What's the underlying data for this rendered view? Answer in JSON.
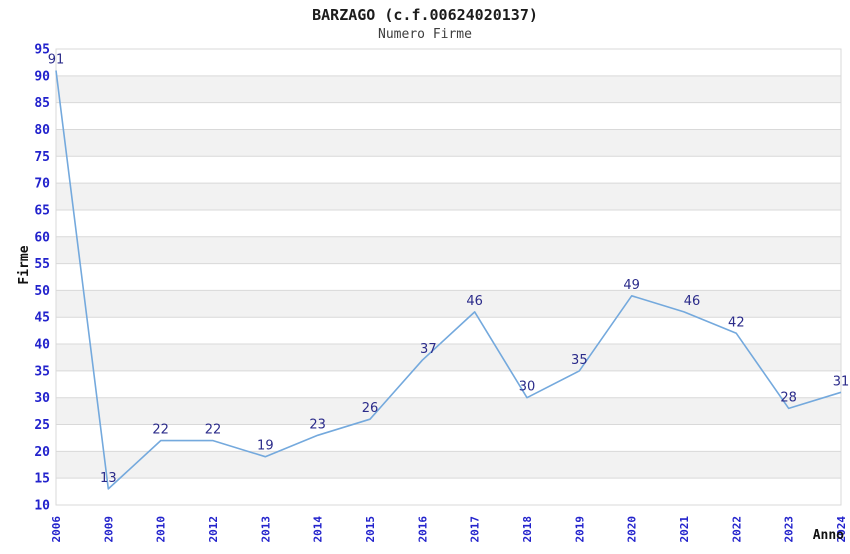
{
  "chart_data": {
    "type": "line",
    "title": "BARZAGO (c.f.00624020137)",
    "subtitle": "Numero Firme",
    "xlabel": "Anno",
    "ylabel": "Firme",
    "categories": [
      "2006",
      "2009",
      "2010",
      "2012",
      "2013",
      "2014",
      "2015",
      "2016",
      "2017",
      "2018",
      "2019",
      "2020",
      "2021",
      "2022",
      "2023",
      "2024"
    ],
    "values": [
      91,
      13,
      22,
      22,
      19,
      23,
      26,
      37,
      46,
      30,
      35,
      49,
      46,
      42,
      28,
      31
    ],
    "ylim": [
      10,
      95
    ],
    "ytick_step": 5,
    "yticks": [
      10,
      15,
      20,
      25,
      30,
      35,
      40,
      45,
      50,
      55,
      60,
      65,
      70,
      75,
      80,
      85,
      90,
      95
    ],
    "grid": true,
    "legend": "none",
    "point_labels_shown": true,
    "colors": {
      "line": "#74a9dd",
      "point_label": "#2b2b8a",
      "tick_label": "#2222cc",
      "band_gray": "#f2f2f2",
      "grid_line": "#d9d9d9",
      "title_text": "#1c1c1c",
      "background": "#ffffff"
    }
  }
}
